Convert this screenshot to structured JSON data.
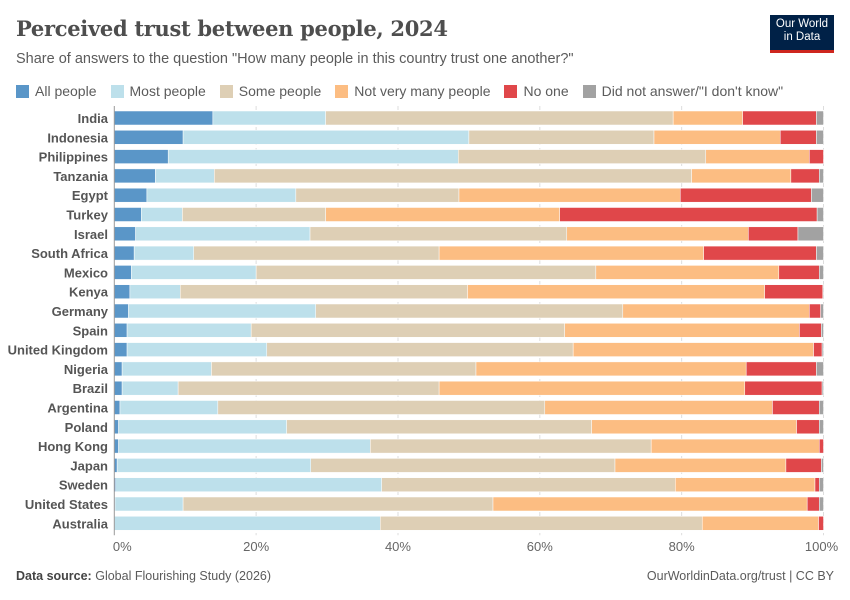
{
  "header": {
    "title": "Perceived trust between people, 2024",
    "subtitle": "Share of answers to the question \"How many people in this country trust one another?\"",
    "logo_text": "Our World in Data"
  },
  "footer": {
    "source_label": "Data source:",
    "source": "Global Flourishing Study (2026)",
    "link": "OurWorldinData.org/trust | CC BY"
  },
  "chart_data": {
    "type": "bar",
    "orientation": "horizontal",
    "stacked": true,
    "xlim": [
      0,
      100
    ],
    "x_ticks": [
      "0%",
      "20%",
      "40%",
      "60%",
      "80%",
      "100%"
    ],
    "grid": true,
    "legend_position": "top",
    "categories": [
      "India",
      "Indonesia",
      "Philippines",
      "Tanzania",
      "Egypt",
      "Turkey",
      "Israel",
      "South Africa",
      "Mexico",
      "Kenya",
      "Germany",
      "Spain",
      "United Kingdom",
      "Nigeria",
      "Brazil",
      "Argentina",
      "Poland",
      "Hong Kong",
      "Japan",
      "Sweden",
      "United States",
      "Australia"
    ],
    "series": [
      {
        "name": "All people",
        "color": "#5a96c8",
        "values": [
          13.9,
          9.7,
          7.6,
          5.8,
          4.6,
          3.8,
          3.0,
          2.8,
          2.4,
          2.2,
          2.0,
          1.8,
          1.8,
          1.1,
          1.1,
          0.8,
          0.6,
          0.6,
          0.4,
          0.2,
          0.1,
          0.0
        ]
      },
      {
        "name": "Most people",
        "color": "#bde0eb",
        "values": [
          15.9,
          40.3,
          40.9,
          8.3,
          21.0,
          5.8,
          24.6,
          8.4,
          17.6,
          7.1,
          26.4,
          17.5,
          19.7,
          12.6,
          7.9,
          13.8,
          23.7,
          35.5,
          27.3,
          37.5,
          9.6,
          37.5
        ]
      },
      {
        "name": "Some people",
        "color": "#decfb5",
        "values": [
          49.0,
          26.1,
          34.9,
          67.3,
          23.0,
          20.2,
          36.2,
          34.6,
          47.9,
          40.5,
          43.3,
          44.2,
          43.2,
          37.3,
          36.8,
          46.1,
          43.0,
          39.6,
          42.9,
          41.4,
          43.7,
          45.4
        ]
      },
      {
        "name": "Not very many people",
        "color": "#fcbd82",
        "values": [
          9.8,
          17.8,
          14.6,
          14.0,
          31.2,
          33.0,
          25.6,
          37.3,
          25.8,
          41.9,
          26.3,
          33.1,
          33.9,
          38.1,
          43.1,
          32.1,
          28.9,
          23.7,
          24.1,
          19.7,
          44.3,
          16.4
        ]
      },
      {
        "name": "No one",
        "color": "#e0474a",
        "values": [
          10.4,
          5.1,
          2.0,
          4.0,
          18.5,
          36.3,
          7.0,
          15.9,
          5.7,
          8.2,
          1.6,
          3.1,
          1.2,
          9.9,
          10.9,
          6.6,
          3.2,
          0.6,
          5.0,
          0.6,
          1.7,
          0.7
        ]
      },
      {
        "name": "Did not answer/\"I don't know\"",
        "color": "#a2a2a2",
        "values": [
          1.0,
          1.0,
          0.0,
          0.6,
          1.7,
          0.9,
          3.6,
          1.0,
          0.6,
          0.1,
          0.4,
          0.3,
          0.2,
          1.0,
          0.2,
          0.6,
          0.6,
          0.0,
          0.3,
          0.6,
          0.6,
          0.0
        ]
      }
    ]
  }
}
